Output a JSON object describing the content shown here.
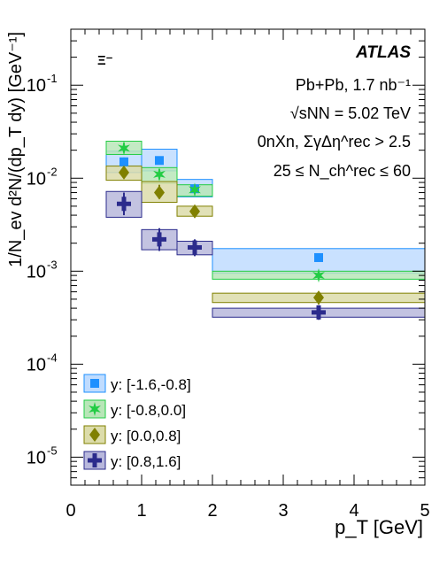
{
  "chart_data": {
    "type": "scatter",
    "yscale": "log",
    "xlim": [
      0,
      5
    ],
    "ylim": [
      5e-06,
      0.4
    ],
    "xlabel": "p_T [GeV]",
    "ylabel": "1/N_ev d²N/(dp_T dy) [GeV⁻¹]",
    "x_ticks": [
      "0",
      "1",
      "2",
      "3",
      "4",
      "5"
    ],
    "y_ticks": [
      "10^-1",
      "10^-2",
      "10^-3",
      "10^-4",
      "10^-5"
    ],
    "particle_label": "Ξ⁻",
    "annotations": {
      "experiment": "ATLAS",
      "dataset": "Pb+Pb, 1.7 nb⁻¹",
      "energy": "√sNN = 5.02 TeV",
      "selection": "0nXn, ΣγΔη^rec > 2.5",
      "centrality": "25 ≤ N_ch^rec ≤ 60"
    },
    "bins": [
      [
        0.5,
        1.0
      ],
      [
        1.0,
        1.5
      ],
      [
        1.5,
        2.0
      ],
      [
        2.0,
        5.0
      ]
    ],
    "x": [
      0.75,
      1.25,
      1.75,
      3.5
    ],
    "series": [
      {
        "name": "y: [-1.6,-0.8]",
        "marker": "square",
        "color": "#1e90ff",
        "fill": "#bfdcff",
        "values": [
          0.015,
          0.0155,
          0.0077,
          0.0014
        ],
        "sys_lo": [
          0.0115,
          0.012,
          0.0063,
          0.00095
        ],
        "sys_hi": [
          0.0195,
          0.0205,
          0.0097,
          0.00175
        ],
        "stat_lo": [
          0.0135,
          0.014,
          0.0071,
          0.0013
        ],
        "stat_hi": [
          0.0167,
          0.0172,
          0.0083,
          0.0015
        ]
      },
      {
        "name": "y: [-0.8,0.0]",
        "marker": "star",
        "color": "#22cc44",
        "fill": "#b8e6b8",
        "values": [
          0.021,
          0.011,
          0.0075,
          0.0009
        ],
        "sys_lo": [
          0.018,
          0.0088,
          0.0064,
          0.00082
        ],
        "sys_hi": [
          0.025,
          0.013,
          0.0085,
          0.001
        ],
        "stat_lo": [
          0.019,
          0.0097,
          0.0069,
          0.00083
        ],
        "stat_hi": [
          0.024,
          0.0125,
          0.0081,
          0.00098
        ]
      },
      {
        "name": "y: [0.0,0.8]",
        "marker": "diamond",
        "color": "#808000",
        "fill": "#dcdcaa",
        "values": [
          0.0115,
          0.007,
          0.0044,
          0.00052
        ],
        "sys_lo": [
          0.0095,
          0.0055,
          0.0039,
          0.00046
        ],
        "sys_hi": [
          0.0135,
          0.0092,
          0.005,
          0.00058
        ],
        "stat_lo": [
          0.0105,
          0.006,
          0.0041,
          0.00044
        ],
        "stat_hi": [
          0.0128,
          0.0085,
          0.0048,
          0.0006
        ]
      },
      {
        "name": "y: [0.8,1.6]",
        "marker": "cross",
        "color": "#2b2b8c",
        "fill": "#b8b8dc",
        "values": [
          0.0053,
          0.0022,
          0.0018,
          0.00036
        ],
        "sys_lo": [
          0.0038,
          0.0017,
          0.0015,
          0.00032
        ],
        "sys_hi": [
          0.0072,
          0.0028,
          0.0021,
          0.0004
        ],
        "stat_lo": [
          0.004,
          0.00165,
          0.00145,
          0.0003
        ],
        "stat_hi": [
          0.007,
          0.0029,
          0.0022,
          0.00043
        ]
      }
    ]
  }
}
